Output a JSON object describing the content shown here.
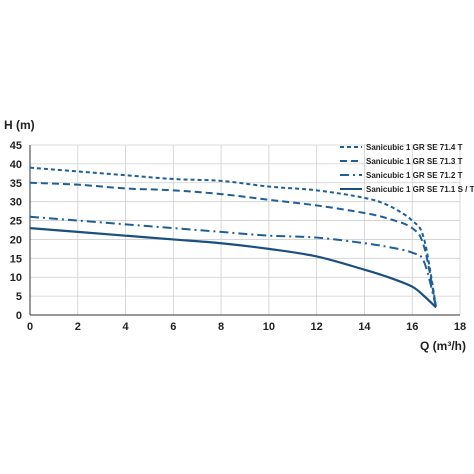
{
  "chart_data": {
    "type": "line",
    "title": "",
    "xlabel": "Q (m³/h)",
    "ylabel": "H (m)",
    "xlim": [
      0,
      18
    ],
    "ylim": [
      0,
      45
    ],
    "xticks": [
      0,
      2,
      4,
      6,
      8,
      10,
      12,
      14,
      16,
      18
    ],
    "yticks": [
      0,
      5,
      10,
      15,
      20,
      25,
      30,
      35,
      40,
      45
    ],
    "grid": true,
    "legend_position": "top-right",
    "series": [
      {
        "name": "Sanicubic 1 GR SE 71.4 T",
        "style": "dashed-short",
        "color": "#1f5f99",
        "x": [
          0,
          2,
          4,
          6,
          8,
          10,
          12,
          14,
          15,
          16,
          16.5,
          17
        ],
        "y": [
          39,
          38,
          37,
          36,
          35.5,
          34,
          33,
          31,
          29,
          25,
          20,
          2
        ]
      },
      {
        "name": "Sanicubic 1 GR SE 71.3 T",
        "style": "dashed-long",
        "color": "#1f5f99",
        "x": [
          0,
          2,
          4,
          6,
          8,
          10,
          12,
          14,
          15,
          16,
          16.5,
          17
        ],
        "y": [
          35,
          34.5,
          33.5,
          33,
          32,
          30.5,
          29,
          27,
          25.5,
          23,
          18,
          2
        ]
      },
      {
        "name": "Sanicubic 1 GR SE 71.2 T",
        "style": "dash-dot",
        "color": "#1f5f99",
        "x": [
          0,
          2,
          4,
          6,
          8,
          10,
          12,
          14,
          15,
          16,
          16.5,
          17
        ],
        "y": [
          26,
          25,
          24,
          23,
          22,
          21,
          20.5,
          19,
          18,
          16.5,
          14,
          2
        ]
      },
      {
        "name": "Sanicubic 1 GR SE 71.1 S / T",
        "style": "solid",
        "color": "#1a4f7f",
        "x": [
          0,
          2,
          4,
          6,
          8,
          10,
          12,
          14,
          15,
          16,
          16.5,
          17
        ],
        "y": [
          23,
          22,
          21,
          20,
          19,
          17.5,
          15.5,
          12,
          10,
          7.5,
          5,
          2
        ]
      }
    ]
  }
}
